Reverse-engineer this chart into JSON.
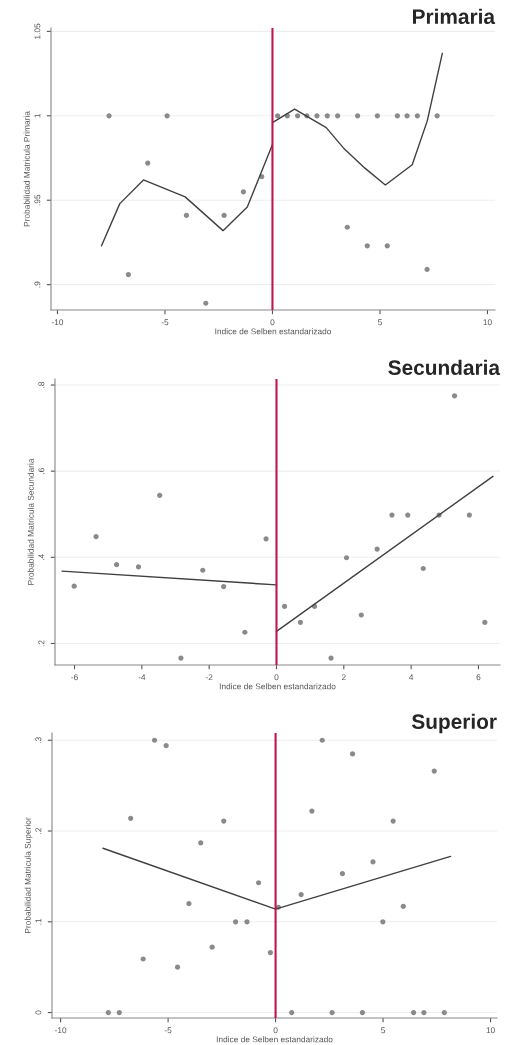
{
  "chart_data": [
    {
      "type": "scatter",
      "title": "Primaria",
      "xlabel": "Indice de Selben estandarizado",
      "ylabel": "Probabilidad Matricula Primaria",
      "xlim": [
        -10.3,
        10.35
      ],
      "ylim": [
        0.885,
        1.052
      ],
      "xticks": [
        -10,
        -5,
        0,
        5,
        10
      ],
      "yticks": [
        {
          "value": 0.9,
          "label": ".9"
        },
        {
          "value": 0.95,
          "label": ".95"
        },
        1,
        {
          "value": 1.05,
          "label": "1.05"
        }
      ],
      "grid": "y",
      "line_style": "solid",
      "ref_lines": [
        {
          "axis": "x",
          "value": 0,
          "color": "#c0154a"
        }
      ],
      "series": [
        {
          "marker": "circle",
          "color": "#8a8a8a",
          "x": [
            -7.6,
            -4.9,
            -5.8,
            -6.7,
            -4.0,
            -3.1,
            -2.25,
            -1.35,
            -0.5,
            0.24,
            0.69,
            1.17,
            1.6,
            2.07,
            2.55,
            3.03,
            3.96,
            4.88,
            5.81,
            6.26,
            6.74,
            7.66,
            3.48,
            4.41,
            5.34,
            7.19
          ],
          "values": [
            1,
            1,
            0.972,
            0.906,
            0.941,
            0.889,
            0.941,
            0.955,
            0.964,
            1,
            1,
            1,
            1,
            1,
            1,
            1,
            1,
            1,
            1,
            1,
            1,
            1,
            0.934,
            0.923,
            0.923,
            0.909
          ]
        },
        {
          "type": "line",
          "color": "#404040",
          "x": [
            -7.95,
            -7.1,
            -6.0,
            -4.06,
            -2.3,
            -1.17,
            0
          ],
          "values": [
            0.923,
            0.948,
            0.962,
            0.952,
            0.932,
            0.946,
            0.983
          ]
        },
        {
          "type": "line",
          "color": "#404040",
          "x": [
            0,
            1.03,
            2.5,
            3.3,
            4.3,
            5.25,
            6.5,
            7.2,
            7.9
          ],
          "values": [
            0.996,
            1.004,
            0.993,
            0.981,
            0.969,
            0.959,
            0.971,
            0.997,
            1.037
          ]
        }
      ]
    },
    {
      "type": "scatter",
      "title": "Secundaria",
      "xlabel": "Indice de Selben estandarizado",
      "ylabel": "Probabilidad Matricula Secundaria",
      "xlim": [
        -6.58,
        6.64
      ],
      "ylim": [
        0.15,
        0.814
      ],
      "xticks": [
        -6,
        -4,
        -2,
        0,
        2,
        4,
        6
      ],
      "yticks": [
        {
          "value": 0.2,
          "label": ".2"
        },
        {
          "value": 0.4,
          "label": ".4"
        },
        {
          "value": 0.6,
          "label": ".6"
        },
        {
          "value": 0.8,
          "label": ".8"
        }
      ],
      "grid": "y",
      "line_style": "solid",
      "ref_lines": [
        {
          "axis": "x",
          "value": 0,
          "color": "#c0154a"
        }
      ],
      "series": [
        {
          "marker": "circle",
          "color": "#8a8a8a",
          "x": [
            -6.01,
            -5.36,
            -4.75,
            -4.1,
            -3.47,
            -2.84,
            -2.19,
            -1.57,
            -0.94,
            -0.31,
            0.24,
            0.71,
            1.13,
            1.62,
            2.08,
            2.52,
            2.99,
            3.43,
            3.9,
            4.36,
            4.83,
            5.29,
            5.73,
            6.19
          ],
          "values": [
            0.333,
            0.448,
            0.383,
            0.378,
            0.544,
            0.166,
            0.37,
            0.332,
            0.226,
            0.443,
            0.286,
            0.249,
            0.286,
            0.166,
            0.399,
            0.266,
            0.419,
            0.498,
            0.498,
            0.374,
            0.498,
            0.775,
            0.498,
            0.249
          ]
        },
        {
          "type": "line",
          "color": "#404040",
          "x": [
            -6.37,
            0
          ],
          "values": [
            0.368,
            0.336
          ]
        },
        {
          "type": "line",
          "color": "#404040",
          "x": [
            0,
            6.43
          ],
          "values": [
            0.228,
            0.588
          ]
        }
      ]
    },
    {
      "type": "scatter",
      "title": "Superior",
      "xlabel": "Indice de Selben estandarizado",
      "ylabel": "Probabilidad Matricula Superior",
      "xlim": [
        -10.4,
        10.3
      ],
      "ylim": [
        -0.006,
        0.308
      ],
      "xticks": [
        -10,
        -5,
        0,
        5,
        10
      ],
      "yticks": [
        0,
        {
          "value": 0.1,
          "label": ".1"
        },
        {
          "value": 0.2,
          "label": ".2"
        },
        {
          "value": 0.3,
          "label": ".3"
        }
      ],
      "grid": "y",
      "line_style": "solid",
      "ref_lines": [
        {
          "axis": "x",
          "value": 0,
          "color": "#c0154a"
        }
      ],
      "series": [
        {
          "marker": "circle",
          "color": "#8a8a8a",
          "x": [
            -7.78,
            -7.27,
            -6.74,
            -6.16,
            -5.63,
            -5.09,
            -4.56,
            -4.03,
            -3.48,
            -2.95,
            -2.41,
            -1.86,
            -1.33,
            -0.79,
            -0.24,
            0.13,
            0.75,
            1.19,
            1.69,
            2.17,
            2.63,
            3.11,
            3.58,
            4.04,
            4.53,
            4.99,
            5.47,
            5.94,
            6.42,
            6.9,
            7.38,
            7.85
          ],
          "values": [
            0,
            0,
            0.214,
            0.059,
            0.3,
            0.294,
            0.05,
            0.12,
            0.187,
            0.072,
            0.211,
            0.1,
            0.1,
            0.143,
            0.066,
            0.116,
            0,
            0.13,
            0.222,
            0.3,
            0,
            0.153,
            0.285,
            0,
            0.166,
            0.1,
            0.211,
            0.117,
            0,
            0,
            0.266,
            0
          ]
        },
        {
          "type": "line",
          "color": "#404040",
          "x": [
            -8.03,
            0
          ],
          "values": [
            0.181,
            0.114
          ]
        },
        {
          "type": "line",
          "color": "#404040",
          "x": [
            0,
            8.14
          ],
          "values": [
            0.114,
            0.172
          ]
        }
      ]
    }
  ]
}
